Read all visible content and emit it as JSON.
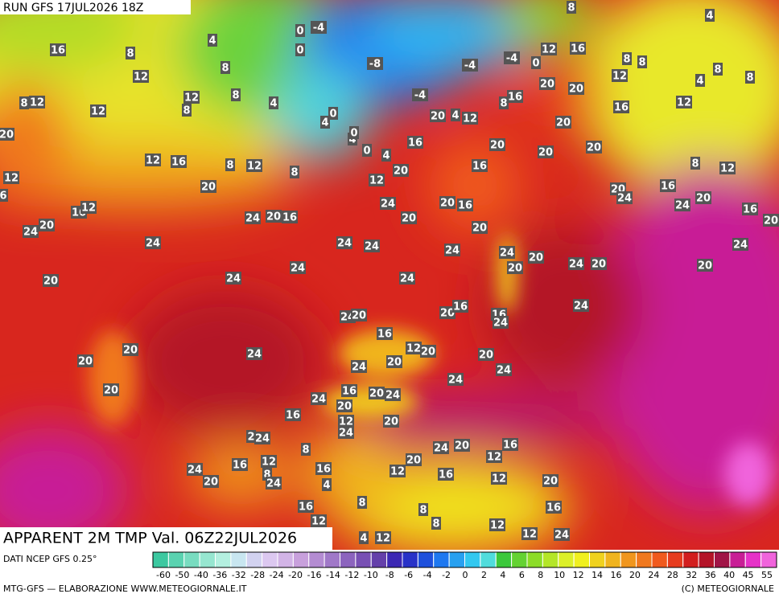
{
  "header": {
    "run": "RUN GFS 17JUL2026 18Z"
  },
  "map": {
    "title": "APPARENT 2M TMP Val. 06Z22JUL2026",
    "labels": [
      16,
      8,
      12,
      4,
      8,
      12,
      8,
      8,
      4,
      12,
      8,
      12,
      20,
      12,
      6,
      12,
      16,
      8,
      12,
      8,
      20,
      16,
      12,
      20,
      24,
      24,
      20,
      16,
      24,
      24,
      24,
      20,
      24,
      24,
      0,
      -4,
      0,
      -8,
      -4,
      -4,
      0,
      12,
      16,
      8,
      4,
      8,
      8,
      12,
      8,
      4,
      8,
      12,
      16,
      20,
      20,
      16,
      8,
      -4,
      20,
      4,
      12,
      20,
      16,
      20,
      20,
      20,
      16,
      20,
      12,
      4,
      0,
      4,
      0,
      4,
      0,
      8,
      12,
      20,
      24,
      16,
      20,
      24,
      16,
      20,
      24,
      20,
      24,
      20,
      20,
      16,
      20,
      24,
      24,
      20,
      20,
      24,
      20,
      24,
      20,
      16,
      16,
      24,
      24,
      24,
      20,
      16,
      12,
      20,
      24,
      20,
      20,
      20,
      24,
      20,
      24,
      24,
      20,
      16,
      20,
      24,
      24,
      20,
      16,
      12,
      20,
      24,
      2,
      24,
      8,
      24,
      20,
      16,
      12,
      20,
      16,
      12,
      24,
      16,
      12,
      8,
      24,
      20,
      16,
      12,
      4,
      20,
      16,
      16,
      8,
      8,
      12,
      8,
      12,
      12,
      24,
      4,
      12
    ]
  },
  "legend": {
    "source": "DATI NCEP GFS 0.25°",
    "ticks": [
      -60,
      -50,
      -40,
      -36,
      -32,
      -28,
      -24,
      -20,
      -16,
      -14,
      -12,
      -10,
      -8,
      -6,
      -4,
      -2,
      0,
      2,
      4,
      6,
      8,
      10,
      12,
      14,
      16,
      20,
      24,
      28,
      32,
      36,
      40,
      45,
      55
    ],
    "colors": [
      "#3cc8a0",
      "#5ad2b0",
      "#78dcc0",
      "#96e6d0",
      "#b4f0e0",
      "#c8e6f0",
      "#d2d2f0",
      "#dcc8f0",
      "#d2b4e6",
      "#c8a0dc",
      "#b48cd2",
      "#a078c8",
      "#8c64be",
      "#7850b4",
      "#6440aa",
      "#3c28b4",
      "#2832c8",
      "#1e50dc",
      "#1e78f0",
      "#28a0f0",
      "#32c8f0",
      "#50dcdc",
      "#3cc83c",
      "#64d232",
      "#8cdc28",
      "#b4e628",
      "#dcf028",
      "#f0f01e",
      "#f0d21e",
      "#f0b41e",
      "#f0961e",
      "#f0781e",
      "#f05a1e",
      "#e63c1e",
      "#d21e1e",
      "#b41428",
      "#a01446",
      "#c81e96",
      "#e632c8",
      "#f064dc"
    ]
  },
  "footer": {
    "credit": "MTG-GFS — ELABORAZIONE WWW.METEOGIORNALE.IT",
    "copyright": "(C) METEOGIORNALE"
  }
}
